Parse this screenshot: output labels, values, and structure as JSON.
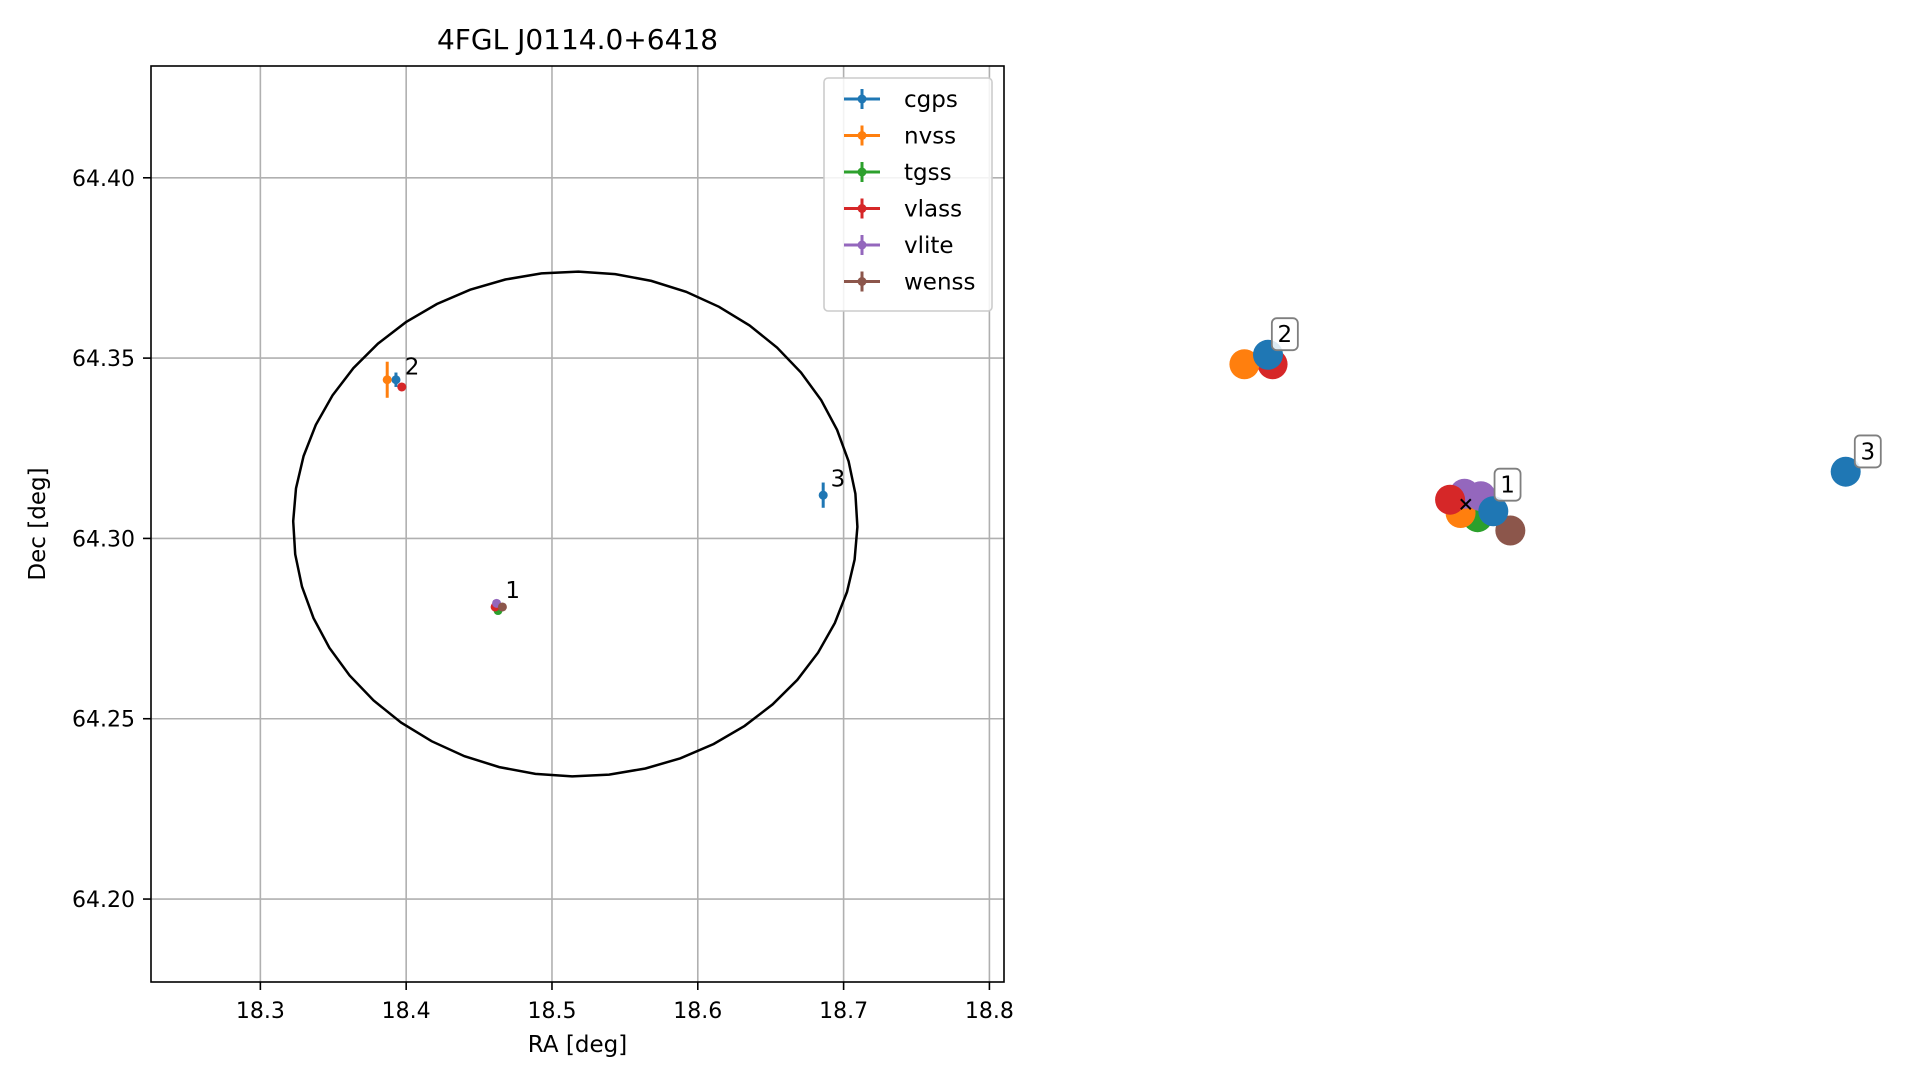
{
  "chart_data": [
    {
      "type": "scatter",
      "title": "4FGL J0114.0+6418",
      "xlabel": "RA [deg]",
      "ylabel": "Dec [deg]",
      "xlim": [
        18.225,
        18.81
      ],
      "ylim": [
        64.177,
        64.431
      ],
      "xticks": [
        18.3,
        18.4,
        18.5,
        18.6,
        18.7,
        18.8
      ],
      "xtick_labels": [
        "18.3",
        "18.4",
        "18.5",
        "18.6",
        "18.7",
        "18.8"
      ],
      "yticks": [
        64.2,
        64.25,
        64.3,
        64.35,
        64.4
      ],
      "ytick_labels": [
        "64.20",
        "64.25",
        "64.30",
        "64.35",
        "64.40"
      ],
      "grid": true,
      "legend_position": "top-right",
      "error_ellipse": {
        "ra_center": 18.516,
        "dec_center": 64.304,
        "ra_radius": 0.1935,
        "dec_radius": 0.07
      },
      "series": [
        {
          "name": "cgps",
          "color": "#1f77b4",
          "points": [
            {
              "ra": 18.464,
              "dec": 64.281,
              "ra_err": 0.0,
              "dec_err": 0.001
            },
            {
              "ra": 18.393,
              "dec": 64.344,
              "ra_err": 0.0,
              "dec_err": 0.002
            },
            {
              "ra": 18.686,
              "dec": 64.312,
              "ra_err": 0.0,
              "dec_err": 0.0035
            }
          ]
        },
        {
          "name": "nvss",
          "color": "#ff7f0e",
          "points": [
            {
              "ra": 18.462,
              "dec": 64.281,
              "ra_err": 0.0,
              "dec_err": 0.001
            },
            {
              "ra": 18.387,
              "dec": 64.344,
              "ra_err": 0.0,
              "dec_err": 0.005
            }
          ]
        },
        {
          "name": "tgss",
          "color": "#2ca02c",
          "points": [
            {
              "ra": 18.463,
              "dec": 64.28,
              "ra_err": 0.0,
              "dec_err": 0.0
            }
          ]
        },
        {
          "name": "vlass",
          "color": "#d62728",
          "points": [
            {
              "ra": 18.461,
              "dec": 64.281,
              "ra_err": 0.0,
              "dec_err": 0.0
            },
            {
              "ra": 18.397,
              "dec": 64.342,
              "ra_err": 0.0,
              "dec_err": 0.0
            }
          ]
        },
        {
          "name": "vlite",
          "color": "#9467bd",
          "points": [
            {
              "ra": 18.462,
              "dec": 64.282,
              "ra_err": 0.0,
              "dec_err": 0.0
            }
          ]
        },
        {
          "name": "wenss",
          "color": "#8c564b",
          "points": [
            {
              "ra": 18.466,
              "dec": 64.281,
              "ra_err": 0.0,
              "dec_err": 0.0
            }
          ]
        }
      ],
      "annotations": [
        {
          "text": "1",
          "ra": 18.466,
          "dec": 64.284
        },
        {
          "text": "2",
          "ra": 18.397,
          "dec": 64.346
        },
        {
          "text": "3",
          "ra": 18.689,
          "dec": 64.315
        }
      ]
    },
    {
      "type": "scatter",
      "title": "",
      "xlabel": "",
      "ylabel": "",
      "axes": false,
      "xlim": [
        0,
        100
      ],
      "ylim": [
        0,
        100
      ],
      "center_marker": {
        "symbol": "x",
        "x": 36.0,
        "y": 44.5
      },
      "groups": [
        {
          "label": "1",
          "label_x": 41.0,
          "label_y": 47.8,
          "points": [
            {
              "name": "cgps",
              "color": "#1f77b4",
              "x": 40.2,
              "y": 42.5
            },
            {
              "name": "vlass",
              "color": "#d62728",
              "x": 33.6,
              "y": 45.8
            },
            {
              "name": "vlite",
              "color": "#9467bd",
              "x": 35.8,
              "y": 47.5
            },
            {
              "name": "vlite",
              "color": "#9467bd",
              "x": 38.3,
              "y": 46.8
            },
            {
              "name": "nvss",
              "color": "#ff7f0e",
              "x": 35.2,
              "y": 42.0
            },
            {
              "name": "tgss",
              "color": "#2ca02c",
              "x": 37.8,
              "y": 40.8
            },
            {
              "name": "wenss",
              "color": "#8c564b",
              "x": 42.8,
              "y": 37.0
            }
          ]
        },
        {
          "label": "2",
          "label_x": 7.0,
          "label_y": 90.8,
          "points": [
            {
              "name": "cgps",
              "color": "#1f77b4",
              "x": 5.8,
              "y": 87.2
            },
            {
              "name": "nvss",
              "color": "#ff7f0e",
              "x": 2.2,
              "y": 84.5
            },
            {
              "name": "vlass",
              "color": "#d62728",
              "x": 6.5,
              "y": 84.5
            }
          ]
        },
        {
          "label": "3",
          "label_x": 96.0,
          "label_y": 57.3,
          "points": [
            {
              "name": "cgps",
              "color": "#1f77b4",
              "x": 94.0,
              "y": 53.8
            }
          ]
        }
      ]
    }
  ]
}
